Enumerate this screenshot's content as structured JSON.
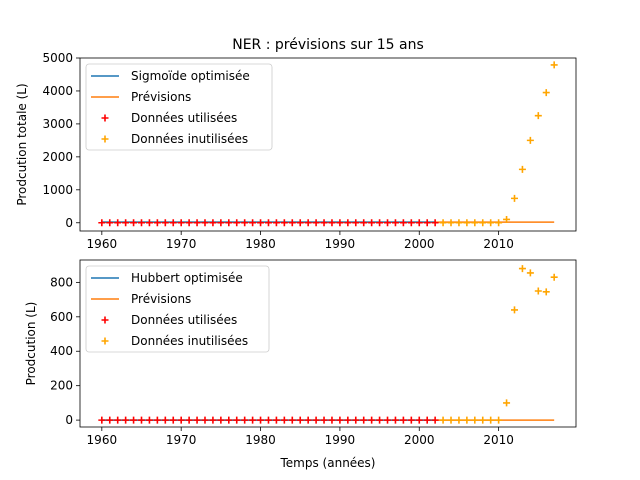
{
  "chart_data": [
    {
      "type": "line",
      "title": "NER : prévisions sur 15 ans",
      "xlabel": "",
      "ylabel": "Prodcution totale (L)",
      "xlim": [
        1957.25,
        2019.75
      ],
      "ylim": [
        -250,
        5000
      ],
      "xticks": [
        1960,
        1970,
        1980,
        1990,
        2000,
        2010
      ],
      "yticks": [
        0,
        1000,
        2000,
        3000,
        4000,
        5000
      ],
      "legend_position": "top-left",
      "series": [
        {
          "name": "Sigmoïde optimisée",
          "kind": "line",
          "color": "#1f77b4",
          "x": [
            1960,
            2002
          ],
          "y": [
            20,
            20
          ]
        },
        {
          "name": "Prévisions",
          "kind": "line",
          "color": "#ff7f0e",
          "x": [
            1960,
            2017
          ],
          "y": [
            20,
            20
          ]
        },
        {
          "name": "Données utilisées",
          "kind": "scatter",
          "color": "#ff0000",
          "x": [
            1960,
            1961,
            1962,
            1963,
            1964,
            1965,
            1966,
            1967,
            1968,
            1969,
            1970,
            1971,
            1972,
            1973,
            1974,
            1975,
            1976,
            1977,
            1978,
            1979,
            1980,
            1981,
            1982,
            1983,
            1984,
            1985,
            1986,
            1987,
            1988,
            1989,
            1990,
            1991,
            1992,
            1993,
            1994,
            1995,
            1996,
            1997,
            1998,
            1999,
            2000,
            2001,
            2002
          ],
          "y": [
            0,
            0,
            0,
            0,
            0,
            0,
            0,
            0,
            0,
            0,
            0,
            0,
            0,
            0,
            0,
            0,
            0,
            0,
            0,
            0,
            0,
            0,
            0,
            0,
            0,
            0,
            0,
            0,
            0,
            0,
            0,
            0,
            0,
            0,
            0,
            0,
            0,
            0,
            0,
            0,
            0,
            0,
            0
          ]
        },
        {
          "name": "Données inutilisées",
          "kind": "scatter",
          "color": "#ffa500",
          "x": [
            2003,
            2004,
            2005,
            2006,
            2007,
            2008,
            2009,
            2010,
            2011,
            2012,
            2013,
            2014,
            2015,
            2016,
            2017
          ],
          "y": [
            0,
            0,
            0,
            0,
            0,
            0,
            0,
            0,
            100,
            740,
            1620,
            2500,
            3250,
            3950,
            4790
          ]
        }
      ]
    },
    {
      "type": "line",
      "title": "",
      "xlabel": "Temps (années)",
      "ylabel": "Prodcution (L)",
      "xlim": [
        1957.25,
        2019.75
      ],
      "ylim": [
        -40,
        930
      ],
      "xticks": [
        1960,
        1970,
        1980,
        1990,
        2000,
        2010
      ],
      "yticks": [
        0,
        200,
        400,
        600,
        800
      ],
      "legend_position": "top-left",
      "series": [
        {
          "name": "Hubbert optimisée",
          "kind": "line",
          "color": "#1f77b4",
          "x": [
            1960,
            2002
          ],
          "y": [
            0,
            0
          ]
        },
        {
          "name": "Prévisions",
          "kind": "line",
          "color": "#ff7f0e",
          "x": [
            1960,
            2017
          ],
          "y": [
            0,
            0
          ]
        },
        {
          "name": "Données utilisées",
          "kind": "scatter",
          "color": "#ff0000",
          "x": [
            1960,
            1961,
            1962,
            1963,
            1964,
            1965,
            1966,
            1967,
            1968,
            1969,
            1970,
            1971,
            1972,
            1973,
            1974,
            1975,
            1976,
            1977,
            1978,
            1979,
            1980,
            1981,
            1982,
            1983,
            1984,
            1985,
            1986,
            1987,
            1988,
            1989,
            1990,
            1991,
            1992,
            1993,
            1994,
            1995,
            1996,
            1997,
            1998,
            1999,
            2000,
            2001,
            2002
          ],
          "y": [
            0,
            0,
            0,
            0,
            0,
            0,
            0,
            0,
            0,
            0,
            0,
            0,
            0,
            0,
            0,
            0,
            0,
            0,
            0,
            0,
            0,
            0,
            0,
            0,
            0,
            0,
            0,
            0,
            0,
            0,
            0,
            0,
            0,
            0,
            0,
            0,
            0,
            0,
            0,
            0,
            0,
            0,
            0
          ]
        },
        {
          "name": "Données inutilisées",
          "kind": "scatter",
          "color": "#ffa500",
          "x": [
            2003,
            2004,
            2005,
            2006,
            2007,
            2008,
            2009,
            2010,
            2011,
            2012,
            2013,
            2014,
            2015,
            2016,
            2017
          ],
          "y": [
            0,
            0,
            0,
            0,
            0,
            0,
            0,
            0,
            100,
            640,
            880,
            855,
            750,
            745,
            830
          ]
        }
      ]
    }
  ]
}
